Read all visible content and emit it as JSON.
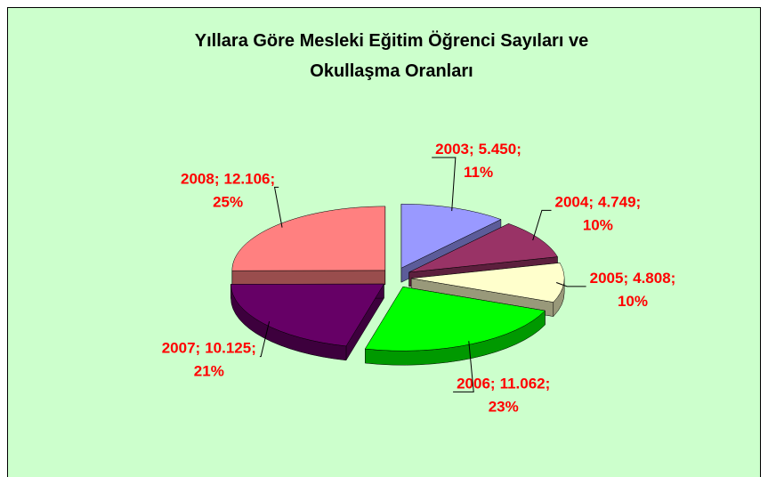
{
  "chart_data": {
    "type": "pie3d",
    "title_lines": [
      "Yıllara Göre Mesleki Eğitim Öğrenci Sayıları ve",
      "Okullaşma Oranları"
    ],
    "categories": [
      "2003",
      "2004",
      "2005",
      "2006",
      "2007",
      "2008"
    ],
    "values": [
      5450,
      4749,
      4808,
      11062,
      10125,
      12106
    ],
    "value_labels": [
      "5.450",
      "4.749",
      "4.808",
      "11.062",
      "10.125",
      "12.106"
    ],
    "percents": [
      11,
      10,
      10,
      23,
      21,
      25
    ],
    "percent_labels": [
      "11%",
      "10%",
      "10%",
      "23%",
      "21%",
      "25%"
    ],
    "label_separator": ";",
    "colors": [
      "#9999FF",
      "#993366",
      "#FFFFCC",
      "#00FF00",
      "#660066",
      "#FF8080"
    ],
    "label_color": "#FF0000",
    "background": "#CCFFCC"
  }
}
